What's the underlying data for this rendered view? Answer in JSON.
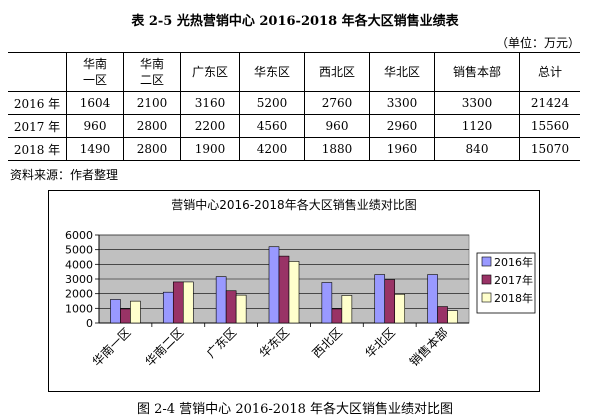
{
  "table": {
    "title": "表 2-5  光热营销中心  2016-2018 年各大区销售业绩表",
    "unit": "（单位：万元）",
    "headers": [
      "",
      "华南\n一区",
      "华南\n二区",
      "广东区",
      "华东区",
      "西北区",
      "华北区",
      "销售本部",
      "总计"
    ],
    "rows": [
      {
        "year": "2016 年",
        "values": [
          "1604",
          "2100",
          "3160",
          "5200",
          "2760",
          "3300",
          "3300",
          "21424"
        ]
      },
      {
        "year": "2017 年",
        "values": [
          "960",
          "2800",
          "2200",
          "4560",
          "960",
          "2960",
          "1120",
          "15560"
        ]
      },
      {
        "year": "2018 年",
        "values": [
          "1490",
          "2800",
          "1900",
          "4200",
          "1880",
          "1960",
          "840",
          "15070"
        ]
      }
    ]
  },
  "source_note": "资料来源：作者整理",
  "figure_caption": "图 2-4 营销中心  2016-2018 年各大区销售业绩对比图",
  "chart_data": {
    "type": "bar",
    "title": "营销中心2016-2018年各大区销售业绩对比图",
    "categories": [
      "华南一区",
      "华南二区",
      "广东区",
      "华东区",
      "西北区",
      "华北区",
      "销售本部"
    ],
    "series": [
      {
        "name": "2016年",
        "values": [
          1604,
          2100,
          3160,
          5200,
          2760,
          3300,
          3300
        ],
        "color": "#9999FF"
      },
      {
        "name": "2017年",
        "values": [
          960,
          2800,
          2200,
          4560,
          960,
          2960,
          1120
        ],
        "color": "#993366"
      },
      {
        "name": "2018年",
        "values": [
          1490,
          2800,
          1900,
          4200,
          1880,
          1960,
          840
        ],
        "color": "#FFFFCC"
      }
    ],
    "yticks": [
      "0",
      "1000",
      "2000",
      "3000",
      "4000",
      "5000",
      "6000"
    ],
    "ylim": [
      0,
      6000
    ],
    "plot_background": "#C0C0C0",
    "grid": true,
    "legend_position": "right"
  }
}
